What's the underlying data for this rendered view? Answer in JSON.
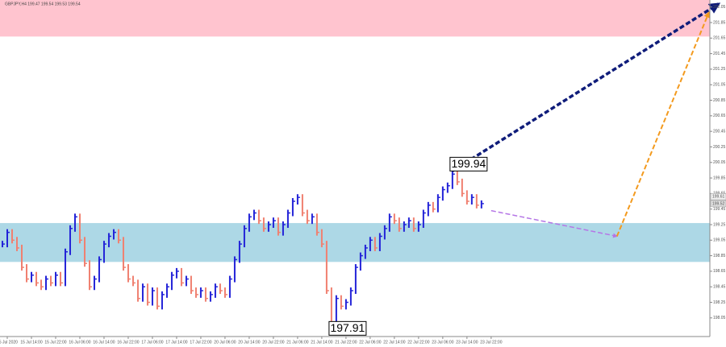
{
  "chart_data": {
    "type": "price_bars",
    "title": "GBPJPY,H4 199.47 199.54 199.53 199.54",
    "up_color": "#2323d8",
    "down_color": "#f08070",
    "xlim": [
      -0.5,
      146.2
    ],
    "ylim": [
      197.81,
      202.14
    ],
    "values": [
      199.0,
      199.15,
      199.05,
      198.95,
      198.7,
      198.55,
      198.6,
      198.5,
      198.45,
      198.55,
      198.5,
      198.6,
      198.5,
      198.9,
      199.2,
      199.35,
      199.05,
      198.75,
      198.45,
      198.55,
      198.8,
      199.0,
      199.1,
      199.15,
      199.05,
      198.7,
      198.55,
      198.5,
      198.3,
      198.45,
      198.25,
      198.4,
      198.2,
      198.35,
      198.45,
      198.6,
      198.65,
      198.5,
      198.55,
      198.4,
      198.35,
      198.4,
      198.3,
      198.35,
      198.45,
      198.4,
      198.35,
      198.55,
      198.8,
      199.0,
      199.2,
      199.35,
      199.4,
      199.3,
      199.2,
      199.25,
      199.3,
      199.15,
      199.25,
      199.4,
      199.55,
      199.6,
      199.4,
      199.3,
      199.35,
      199.15,
      199.0,
      198.4,
      197.95,
      198.3,
      198.2,
      198.25,
      198.4,
      198.7,
      198.85,
      198.95,
      199.05,
      198.95,
      199.1,
      199.2,
      199.35,
      199.3,
      199.2,
      199.25,
      199.3,
      199.2,
      199.25,
      199.4,
      199.5,
      199.45,
      199.6,
      199.7,
      199.75,
      199.9,
      199.8,
      199.65,
      199.55,
      199.6,
      199.5,
      199.52
    ],
    "zones": [
      {
        "range": [
          201.67,
          202.14
        ],
        "color": "#ffc4cf"
      },
      {
        "range": [
          198.77,
          199.27
        ],
        "color": "#add8e6"
      }
    ],
    "projections": [
      {
        "points": [
          [
            101,
            199.43
          ],
          [
            127,
            199.1
          ]
        ],
        "color": "#b576e6",
        "width": 1.5
      },
      {
        "points": [
          [
            127,
            199.1
          ],
          [
            146,
            201.98
          ]
        ],
        "color": "#f39a1e",
        "width": 2
      },
      {
        "points": [
          [
            93,
            199.94
          ],
          [
            148,
            202.09
          ]
        ],
        "color": "#0f1c7a",
        "width": 3.5
      }
    ],
    "annotations": [
      {
        "label": "199.94",
        "value": 199.94,
        "index": 93
      },
      {
        "label": "197.91",
        "value": 197.91,
        "index": 68
      }
    ],
    "price_labels": [
      199.61,
      199.52
    ],
    "yticks": [
      198.05,
      198.25,
      198.45,
      198.65,
      198.85,
      199.05,
      199.25,
      199.45,
      199.65,
      199.85,
      200.05,
      200.25,
      200.45,
      200.65,
      200.85,
      201.05,
      201.25,
      201.45,
      201.65,
      201.85,
      202.05
    ],
    "xticks": [
      {
        "value": 1,
        "label": "15 Jul 2020"
      },
      {
        "value": 6,
        "label": "15 Jul 14:00"
      },
      {
        "value": 11,
        "label": "15 Jul 22:00"
      },
      {
        "value": 16,
        "label": "16 Jul 06:00"
      },
      {
        "value": 21,
        "label": "16 Jul 14:00"
      },
      {
        "value": 26,
        "label": "16 Jul 22:00"
      },
      {
        "value": 31,
        "label": "17 Jul 06:00"
      },
      {
        "value": 36,
        "label": "17 Jul 14:00"
      },
      {
        "value": 41,
        "label": "17 Jul 22:00"
      },
      {
        "value": 46,
        "label": "20 Jul 06:00"
      },
      {
        "value": 51,
        "label": "20 Jul 14:00"
      },
      {
        "value": 56,
        "label": "20 Jul 22:00"
      },
      {
        "value": 61,
        "label": "21 Jul 06:00"
      },
      {
        "value": 66,
        "label": "21 Jul 14:00"
      },
      {
        "value": 71,
        "label": "21 Jul 22:00"
      },
      {
        "value": 76,
        "label": "22 Jul 06:00"
      },
      {
        "value": 81,
        "label": "22 Jul 14:00"
      },
      {
        "value": 86,
        "label": "22 Jul 22:00"
      },
      {
        "value": 91,
        "label": "23 Jul 06:00"
      },
      {
        "value": 96,
        "label": "23 Jul 14:00"
      },
      {
        "value": 101,
        "label": "23 Jul 22:00"
      }
    ]
  }
}
